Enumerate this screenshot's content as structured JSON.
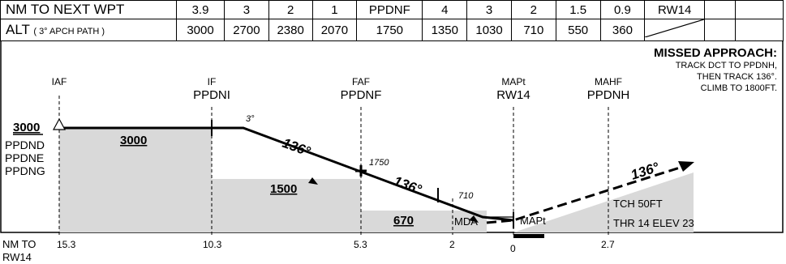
{
  "table": {
    "row1_label": "NM TO NEXT WPT",
    "row2_label": "ALT",
    "row2_sublabel": "( 3° APCH PATH )",
    "dist": [
      "3.9",
      "3",
      "2",
      "1",
      "PPDNF",
      "4",
      "3",
      "2",
      "1.5",
      "0.9",
      "RW14",
      "",
      ""
    ],
    "alt": [
      "3000",
      "2700",
      "2380",
      "2070",
      "1750",
      "1350",
      "1030",
      "710",
      "550",
      "360",
      "",
      "",
      ""
    ]
  },
  "missed": {
    "title": "MISSED APPROACH:",
    "lines": [
      "TRACK DCT TO PPDNH,",
      "THEN TRACK 136°.",
      "CLIMB TO 1800FT."
    ]
  },
  "fixes": {
    "iaf": {
      "role": "IAF",
      "name": ""
    },
    "if": {
      "role": "IF",
      "name": "PPDNI"
    },
    "faf": {
      "role": "FAF",
      "name": "PPDNF"
    },
    "mapt": {
      "role": "MAPt",
      "name": "RW14"
    },
    "mahf": {
      "role": "MAHF",
      "name": "PPDNH"
    }
  },
  "profile": {
    "alt_iaf": "3000",
    "iaf_names": [
      "PPDND",
      "PPDNE",
      "PPDNG"
    ],
    "segment_alts": [
      "3000",
      "1500",
      "670"
    ],
    "glide_angle": "3°",
    "track": "136°",
    "faf_alt": "1750",
    "stepdown_alt": "710",
    "mda": "MDA",
    "mapt_label": "MAPt",
    "tch": "TCH 50FT",
    "thr": "THR 14 ELEV 23",
    "nm_label_1": "NM TO",
    "nm_label_2": "RW14",
    "nm_ticks": [
      "15.3",
      "10.3",
      "5.3",
      "2",
      "0",
      "2.7"
    ]
  }
}
